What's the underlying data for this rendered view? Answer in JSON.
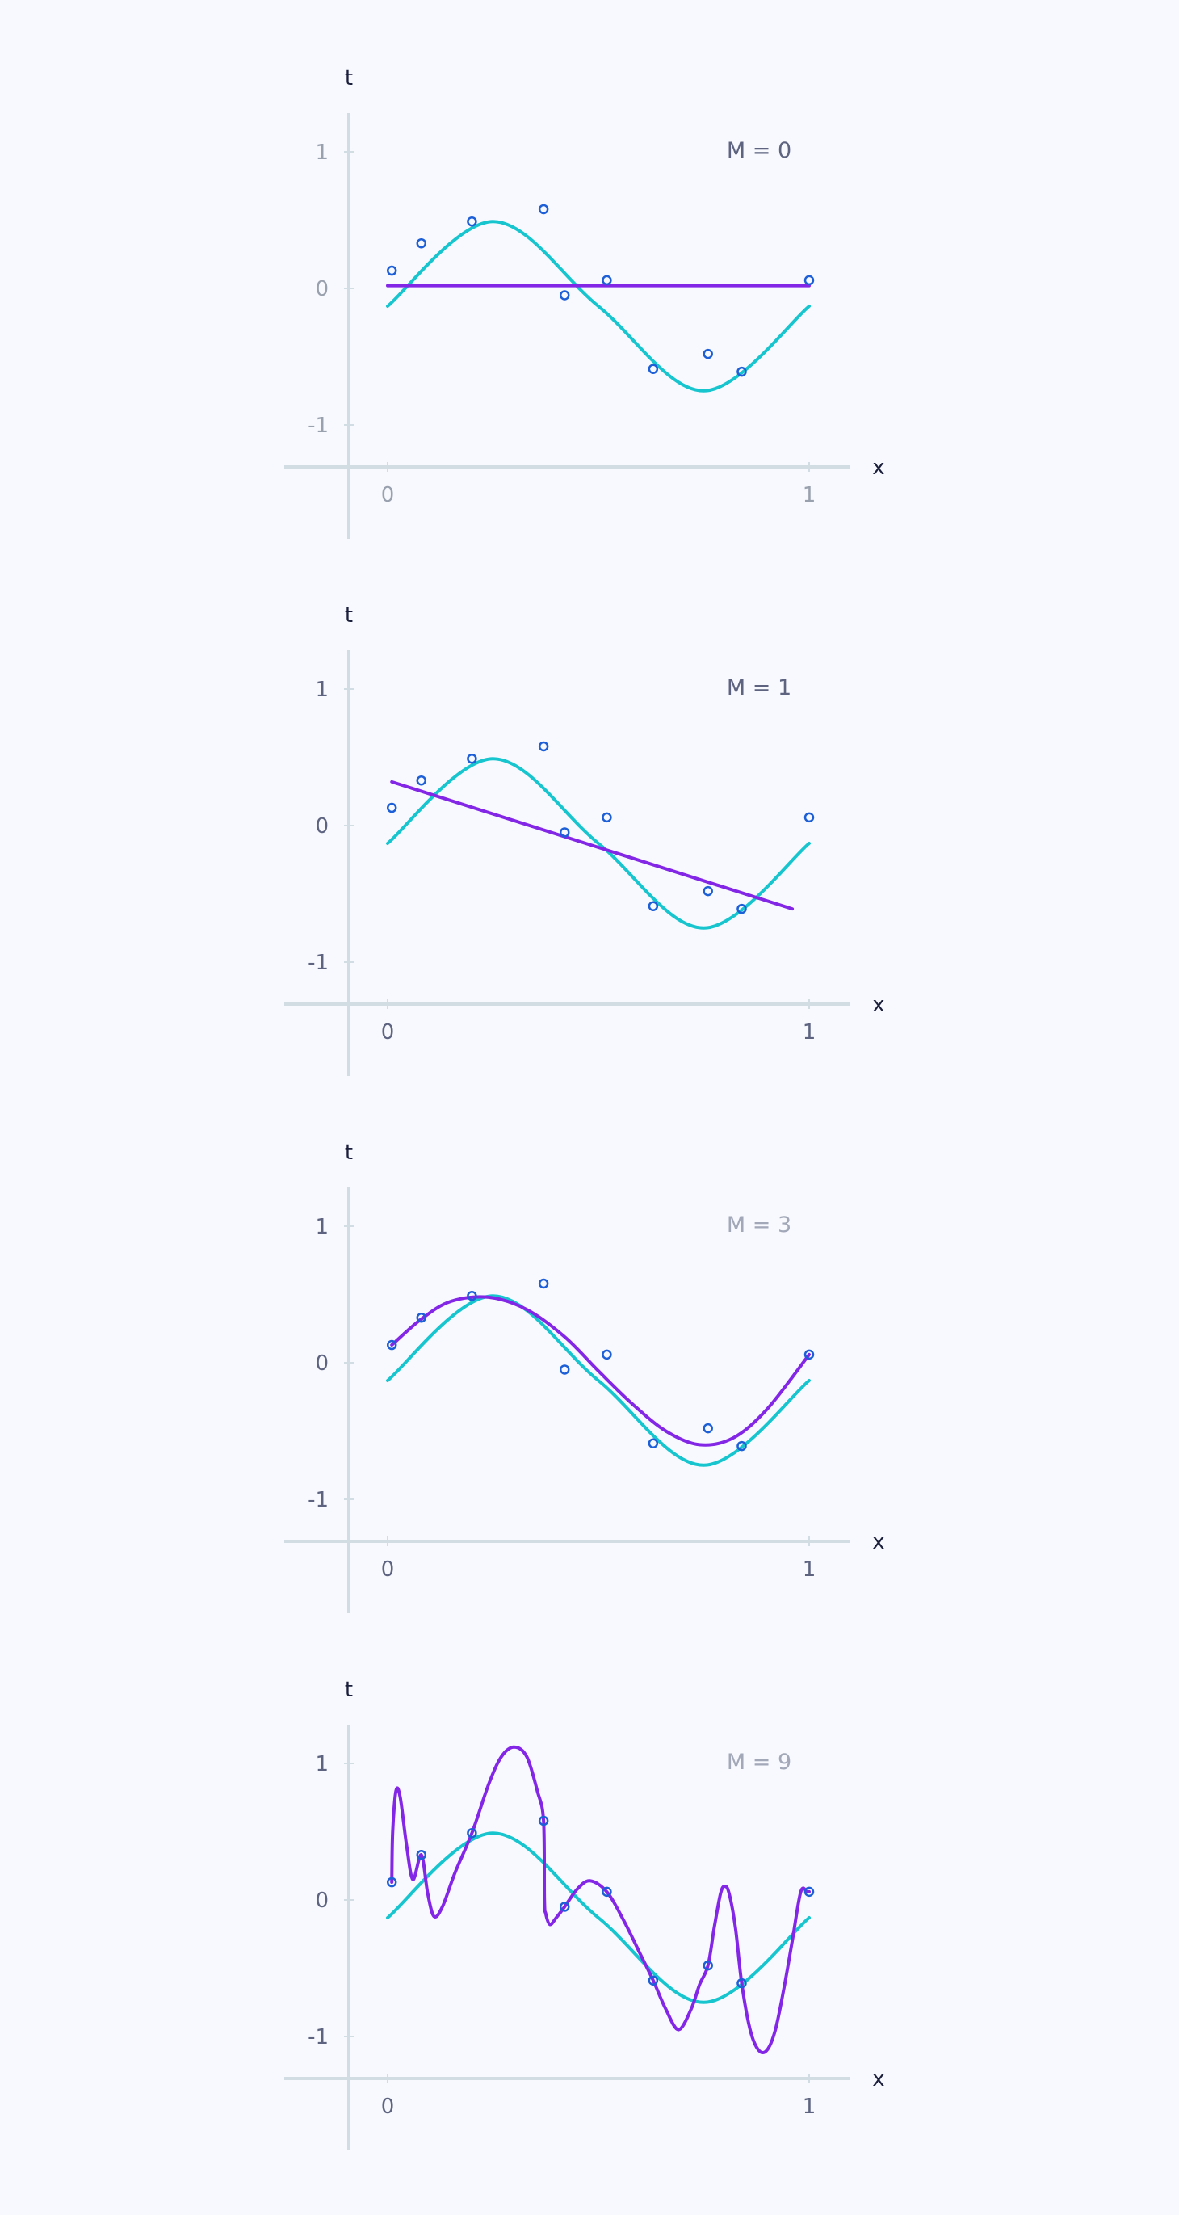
{
  "colors": {
    "background": "#f7f9fe",
    "axis": "#d2dde3",
    "truth_curve": "#17c5cf",
    "fit_curve": "#8426e6",
    "data_points": "#1d5fd6",
    "axis_name": "#1b1f3b"
  },
  "chart_data": [
    {
      "type": "line",
      "title": "M = 0",
      "title_color": "#5e6480",
      "tick_color": "#9aa1ae",
      "xlabel": "x",
      "ylabel": "t",
      "xlim": [
        0,
        1
      ],
      "ylim": [
        -1,
        1
      ],
      "xticks": [
        "0",
        "1"
      ],
      "yticks": [
        "1",
        "0",
        "-1"
      ],
      "grid": false,
      "data_points": {
        "x": [
          0.01,
          0.08,
          0.2,
          0.37,
          0.42,
          0.52,
          0.63,
          0.76,
          0.84,
          1.0
        ],
        "t": [
          0.13,
          0.33,
          0.49,
          0.58,
          -0.05,
          0.06,
          -0.59,
          -0.48,
          -0.61,
          0.06
        ]
      },
      "series": [
        {
          "x": [
            0.0,
            0.25,
            0.5,
            0.75,
            1.0
          ],
          "y": [
            -0.13,
            0.49,
            -0.13,
            -0.75,
            -0.13
          ]
        },
        {
          "x": [
            0.0,
            1.0
          ],
          "y": [
            0.02,
            0.02
          ]
        }
      ]
    },
    {
      "type": "line",
      "title": "M = 1",
      "title_color": "#5e6480",
      "tick_color": "#5e6480",
      "xlabel": "x",
      "ylabel": "t",
      "xlim": [
        0,
        1
      ],
      "ylim": [
        -1,
        1
      ],
      "xticks": [
        "0",
        "1"
      ],
      "yticks": [
        "1",
        "0",
        "-1"
      ],
      "grid": false,
      "data_points": {
        "x": [
          0.01,
          0.08,
          0.2,
          0.37,
          0.42,
          0.52,
          0.63,
          0.76,
          0.84,
          1.0
        ],
        "t": [
          0.13,
          0.33,
          0.49,
          0.58,
          -0.05,
          0.06,
          -0.59,
          -0.48,
          -0.61,
          0.06
        ]
      },
      "series": [
        {
          "x": [
            0.0,
            0.25,
            0.5,
            0.75,
            1.0
          ],
          "y": [
            -0.13,
            0.49,
            -0.13,
            -0.75,
            -0.13
          ]
        },
        {
          "x": [
            0.01,
            0.96
          ],
          "y": [
            0.32,
            -0.61
          ]
        }
      ]
    },
    {
      "type": "line",
      "title": "M = 3",
      "title_color": "#a2a8b8",
      "tick_color": "#5e6480",
      "xlabel": "x",
      "ylabel": "t",
      "xlim": [
        0,
        1
      ],
      "ylim": [
        -1,
        1
      ],
      "xticks": [
        "0",
        "1"
      ],
      "yticks": [
        "1",
        "0",
        "-1"
      ],
      "grid": false,
      "data_points": {
        "x": [
          0.01,
          0.08,
          0.2,
          0.37,
          0.42,
          0.52,
          0.63,
          0.76,
          0.84,
          1.0
        ],
        "t": [
          0.13,
          0.33,
          0.49,
          0.58,
          -0.05,
          0.06,
          -0.59,
          -0.48,
          -0.61,
          0.06
        ]
      },
      "series": [
        {
          "x": [
            0.0,
            0.25,
            0.5,
            0.75,
            1.0
          ],
          "y": [
            -0.13,
            0.49,
            -0.13,
            -0.75,
            -0.13
          ]
        },
        {
          "x": [
            0.01,
            0.08,
            0.15,
            0.24,
            0.33,
            0.42,
            0.5,
            0.58,
            0.66,
            0.74,
            0.82,
            0.9,
            1.0
          ],
          "y": [
            0.13,
            0.32,
            0.45,
            0.48,
            0.39,
            0.19,
            -0.06,
            -0.3,
            -0.5,
            -0.6,
            -0.55,
            -0.34,
            0.06
          ]
        }
      ]
    },
    {
      "type": "line",
      "title": "M = 9",
      "title_color": "#a2a8b8",
      "tick_color": "#5e6480",
      "xlabel": "x",
      "ylabel": "t",
      "xlim": [
        0,
        1
      ],
      "ylim": [
        -1,
        1
      ],
      "xticks": [
        "0",
        "1"
      ],
      "yticks": [
        "1",
        "0",
        "-1"
      ],
      "grid": false,
      "data_points": {
        "x": [
          0.01,
          0.08,
          0.2,
          0.37,
          0.42,
          0.52,
          0.63,
          0.76,
          0.84,
          1.0
        ],
        "t": [
          0.13,
          0.33,
          0.49,
          0.58,
          -0.05,
          0.06,
          -0.59,
          -0.48,
          -0.61,
          0.06
        ]
      },
      "series": [
        {
          "x": [
            0.0,
            0.25,
            0.5,
            0.75,
            1.0
          ],
          "y": [
            -0.13,
            0.49,
            -0.13,
            -0.75,
            -0.13
          ]
        },
        {
          "x": [
            0.01,
            0.012,
            0.02,
            0.03,
            0.045,
            0.06,
            0.08,
            0.095,
            0.11,
            0.13,
            0.16,
            0.2,
            0.24,
            0.27,
            0.3,
            0.33,
            0.355,
            0.37,
            0.372,
            0.375,
            0.385,
            0.4,
            0.42,
            0.45,
            0.48,
            0.52,
            0.56,
            0.6,
            0.63,
            0.66,
            0.69,
            0.72,
            0.74,
            0.76,
            0.775,
            0.79,
            0.8,
            0.81,
            0.825,
            0.84,
            0.86,
            0.88,
            0.9,
            0.92,
            0.94,
            0.96,
            0.98,
            0.995,
            1.0
          ],
          "y": [
            0.13,
            0.5,
            0.8,
            0.75,
            0.4,
            0.15,
            0.33,
            0.05,
            -0.12,
            -0.05,
            0.2,
            0.49,
            0.85,
            1.05,
            1.12,
            1.05,
            0.8,
            0.58,
            0.0,
            -0.1,
            -0.18,
            -0.13,
            -0.05,
            0.08,
            0.14,
            0.06,
            -0.15,
            -0.4,
            -0.59,
            -0.8,
            -0.95,
            -0.8,
            -0.62,
            -0.48,
            -0.2,
            0.05,
            0.1,
            0.05,
            -0.2,
            -0.61,
            -0.95,
            -1.1,
            -1.1,
            -0.95,
            -0.65,
            -0.3,
            0.06,
            0.06,
            0.06
          ]
        }
      ]
    }
  ]
}
